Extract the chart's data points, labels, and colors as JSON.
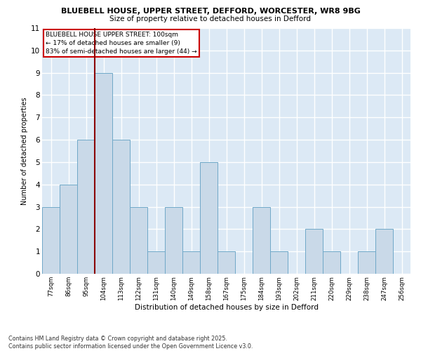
{
  "title_line1": "BLUEBELL HOUSE, UPPER STREET, DEFFORD, WORCESTER, WR8 9BG",
  "title_line2": "Size of property relative to detached houses in Defford",
  "xlabel": "Distribution of detached houses by size in Defford",
  "ylabel": "Number of detached properties",
  "footer_line1": "Contains HM Land Registry data © Crown copyright and database right 2025.",
  "footer_line2": "Contains public sector information licensed under the Open Government Licence v3.0.",
  "bin_labels": [
    "77sqm",
    "86sqm",
    "95sqm",
    "104sqm",
    "113sqm",
    "122sqm",
    "131sqm",
    "140sqm",
    "149sqm",
    "158sqm",
    "167sqm",
    "175sqm",
    "184sqm",
    "193sqm",
    "202sqm",
    "211sqm",
    "220sqm",
    "229sqm",
    "238sqm",
    "247sqm",
    "256sqm"
  ],
  "bin_values": [
    3,
    4,
    6,
    9,
    6,
    3,
    1,
    3,
    1,
    5,
    1,
    0,
    3,
    1,
    0,
    2,
    1,
    0,
    1,
    2,
    0
  ],
  "bar_color": "#c9d9e8",
  "bar_edge_color": "#6fa8c8",
  "vline_x": 2.5,
  "vline_color": "#8b0000",
  "annotation_text_line1": "BLUEBELL HOUSE UPPER STREET: 100sqm",
  "annotation_text_line2": "← 17% of detached houses are smaller (9)",
  "annotation_text_line3": "83% of semi-detached houses are larger (44) →",
  "annotation_box_color": "#ffffff",
  "annotation_box_edge": "#cc0000",
  "ylim": [
    0,
    11
  ],
  "yticks": [
    0,
    1,
    2,
    3,
    4,
    5,
    6,
    7,
    8,
    9,
    10,
    11
  ],
  "background_color": "#dce9f5",
  "grid_color": "#ffffff"
}
